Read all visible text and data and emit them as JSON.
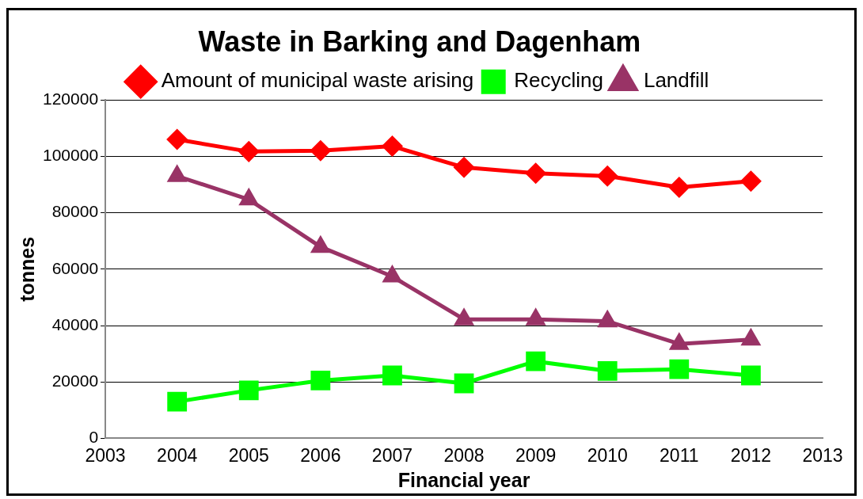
{
  "chart_data": {
    "type": "line",
    "title": "Waste in Barking and Dagenham",
    "xlabel": "Financial year",
    "ylabel": "tonnes",
    "x": [
      2004,
      2005,
      2006,
      2007,
      2008,
      2009,
      2010,
      2011,
      2012
    ],
    "series": [
      {
        "name": "Amount of municipal waste arising",
        "color": "#ff0000",
        "marker": "diamond",
        "values": [
          106000,
          101700,
          102000,
          103600,
          96100,
          94000,
          93000,
          89000,
          91200
        ]
      },
      {
        "name": "Recycling",
        "color": "#00ff00",
        "marker": "square",
        "values": [
          13000,
          17000,
          20500,
          22300,
          19500,
          27300,
          23900,
          24500,
          22300
        ]
      },
      {
        "name": "Landfill",
        "color": "#993366",
        "marker": "triangle",
        "values": [
          93000,
          84700,
          67900,
          57400,
          42200,
          42200,
          41500,
          33500,
          35000
        ]
      }
    ],
    "xlim": [
      2003,
      2013
    ],
    "xticks": [
      2003,
      2004,
      2005,
      2006,
      2007,
      2008,
      2009,
      2010,
      2011,
      2012,
      2013
    ],
    "ylim": [
      0,
      120000
    ],
    "yticks": [
      0,
      20000,
      40000,
      60000,
      80000,
      100000,
      120000
    ],
    "grid": "y",
    "legend": "top",
    "line_style": "solid"
  }
}
